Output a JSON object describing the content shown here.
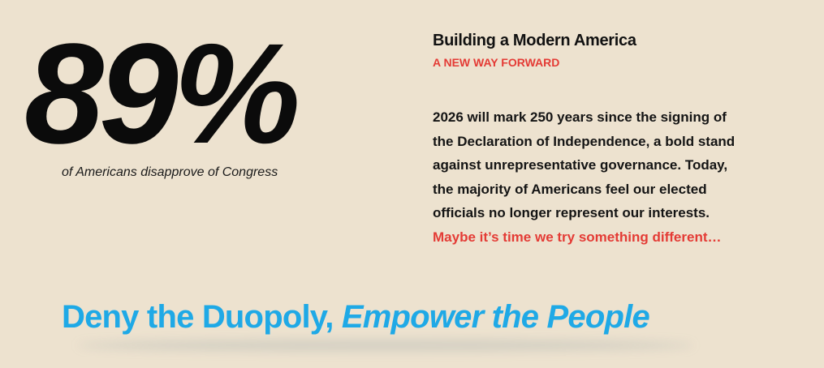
{
  "stat": {
    "value": "89%",
    "caption": "of Americans disapprove of Congress"
  },
  "info": {
    "title": "Building a Modern America",
    "kicker": "A NEW WAY FORWARD",
    "body_lines": [
      "2026 will mark 250 years since the signing of",
      "the Declaration of Independence, a bold stand",
      "against unrepresentative governance. Today,",
      "the majority of Americans feel our elected",
      "officials no longer represent our interests."
    ],
    "accent_line": "Maybe it’s time we try something different…"
  },
  "tagline": {
    "part1": "Deny the Duopoly, ",
    "part2": "Empower the People"
  },
  "colors": {
    "background": "#ede2cf",
    "accent_red": "#e43b35",
    "accent_blue": "#1fa9e6",
    "text": "#111111"
  }
}
